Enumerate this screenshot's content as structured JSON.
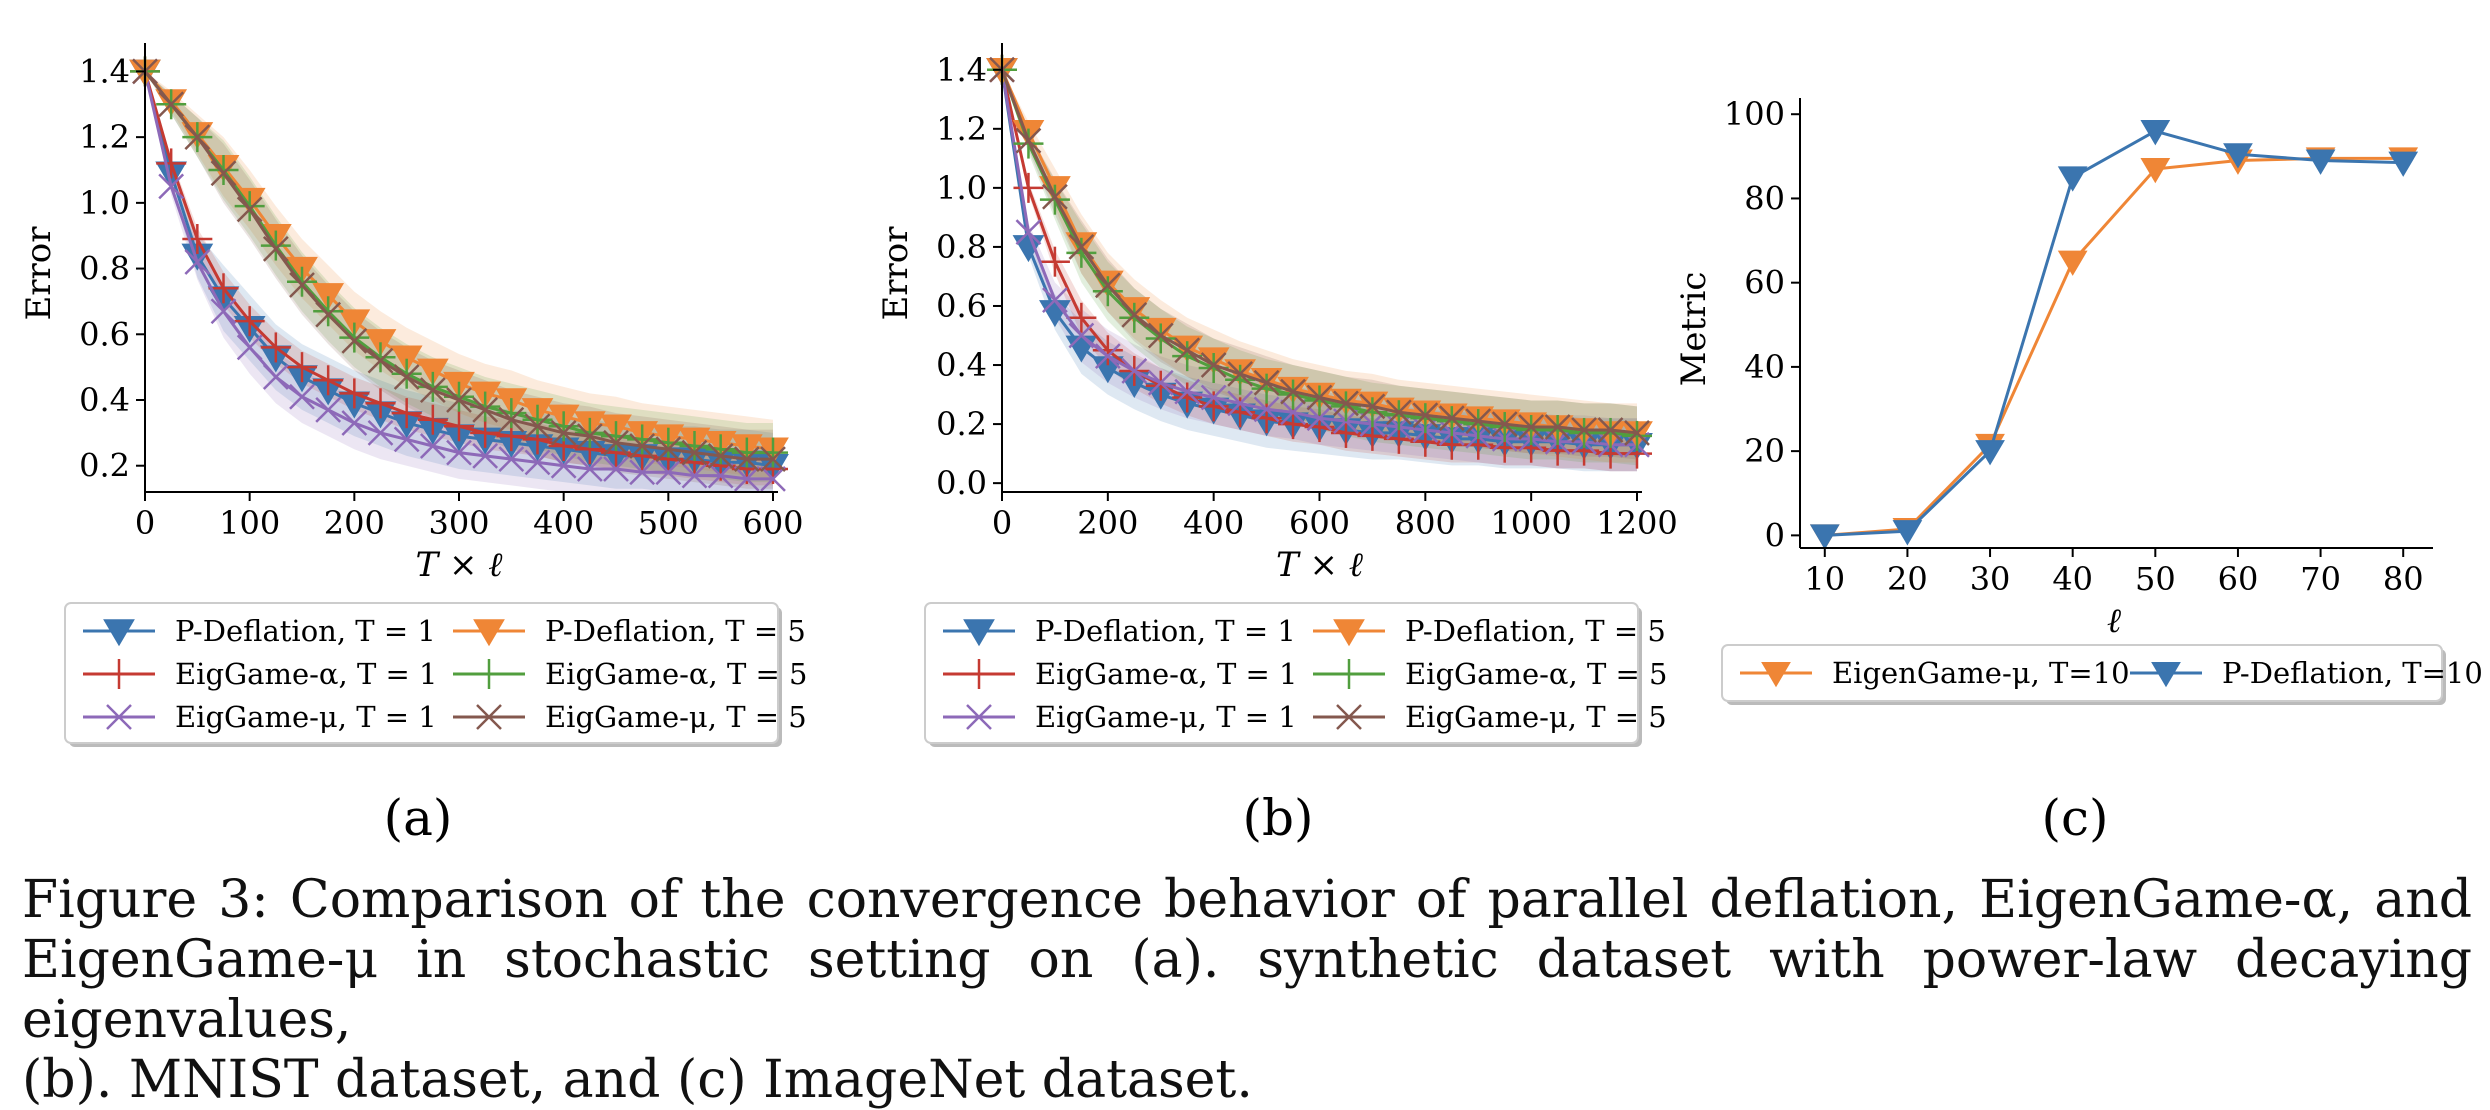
{
  "panel_labels": [
    "(a)",
    "(b)",
    "(c)"
  ],
  "caption": {
    "line1": "Figure 3:  Comparison of the convergence behavior of parallel deflation, EigenGame-α, and",
    "line2": "EigenGame-μ in stochastic setting on (a). synthetic dataset with power-law decaying eigenvalues,",
    "line3": "(b). MNIST dataset, and (c) ImageNet dataset."
  },
  "colors": {
    "blue": "#3b75af",
    "orange": "#ef8636",
    "red": "#c53a32",
    "green": "#519e3e",
    "purple": "#8d69b8",
    "brown": "#84584e"
  },
  "chart_data": [
    {
      "type": "line",
      "panel": "(a)",
      "xlabel": "T × ℓ",
      "ylabel": "Error",
      "xlim": [
        0,
        600
      ],
      "ylim": [
        0.12,
        1.45
      ],
      "xticks": [
        0,
        100,
        200,
        300,
        400,
        500,
        600
      ],
      "yticks": [
        0.2,
        0.4,
        0.6,
        0.8,
        1.0,
        1.2,
        1.4
      ],
      "ytick_labels": [
        "0.2",
        "0.4",
        "0.6",
        "0.8",
        "1.0",
        "1.2",
        "1.4"
      ],
      "legend_placement": "below",
      "legend_columns": 2,
      "series": [
        {
          "name": "P-Deflation, T = 1",
          "color": "blue",
          "marker": "triangle-down",
          "band": 0.1,
          "x": [
            0,
            25,
            50,
            75,
            100,
            125,
            150,
            175,
            200,
            225,
            250,
            275,
            300,
            325,
            350,
            375,
            400,
            425,
            450,
            475,
            500,
            525,
            550,
            575,
            600
          ],
          "values": [
            1.4,
            1.09,
            0.84,
            0.71,
            0.62,
            0.53,
            0.47,
            0.43,
            0.39,
            0.36,
            0.33,
            0.31,
            0.29,
            0.28,
            0.27,
            0.26,
            0.25,
            0.24,
            0.23,
            0.23,
            0.22,
            0.22,
            0.21,
            0.21,
            0.2
          ]
        },
        {
          "name": "EigGame-α, T = 1",
          "color": "red",
          "marker": "plus",
          "band": 0.05,
          "x": [
            0,
            25,
            50,
            75,
            100,
            125,
            150,
            175,
            200,
            225,
            250,
            275,
            300,
            325,
            350,
            375,
            400,
            425,
            450,
            475,
            500,
            525,
            550,
            575,
            600
          ],
          "values": [
            1.4,
            1.12,
            0.89,
            0.74,
            0.64,
            0.56,
            0.5,
            0.46,
            0.42,
            0.39,
            0.36,
            0.34,
            0.32,
            0.3,
            0.29,
            0.28,
            0.26,
            0.25,
            0.24,
            0.23,
            0.22,
            0.21,
            0.2,
            0.19,
            0.19
          ]
        },
        {
          "name": "EigGame-μ, T = 1",
          "color": "purple",
          "marker": "x",
          "band": 0.08,
          "x": [
            0,
            25,
            50,
            75,
            100,
            125,
            150,
            175,
            200,
            225,
            250,
            275,
            300,
            325,
            350,
            375,
            400,
            425,
            450,
            475,
            500,
            525,
            550,
            575,
            600
          ],
          "values": [
            1.4,
            1.05,
            0.82,
            0.67,
            0.56,
            0.47,
            0.41,
            0.37,
            0.33,
            0.3,
            0.28,
            0.26,
            0.24,
            0.23,
            0.22,
            0.21,
            0.2,
            0.19,
            0.19,
            0.18,
            0.18,
            0.17,
            0.17,
            0.16,
            0.16
          ]
        },
        {
          "name": "P-Deflation, T = 5",
          "color": "orange",
          "marker": "triangle-down",
          "band": 0.09,
          "x": [
            0,
            25,
            50,
            75,
            100,
            125,
            150,
            175,
            200,
            225,
            250,
            275,
            300,
            325,
            350,
            375,
            400,
            425,
            450,
            475,
            500,
            525,
            550,
            575,
            600
          ],
          "values": [
            1.4,
            1.31,
            1.21,
            1.11,
            1.01,
            0.9,
            0.8,
            0.72,
            0.64,
            0.58,
            0.53,
            0.49,
            0.45,
            0.42,
            0.4,
            0.37,
            0.35,
            0.33,
            0.32,
            0.3,
            0.29,
            0.28,
            0.27,
            0.26,
            0.25
          ]
        },
        {
          "name": "EigGame-α, T = 5",
          "color": "green",
          "marker": "plus",
          "band": 0.09,
          "x": [
            0,
            25,
            50,
            75,
            100,
            125,
            150,
            175,
            200,
            225,
            250,
            275,
            300,
            325,
            350,
            375,
            400,
            425,
            450,
            475,
            500,
            525,
            550,
            575,
            600
          ],
          "values": [
            1.4,
            1.3,
            1.2,
            1.1,
            0.99,
            0.87,
            0.76,
            0.67,
            0.59,
            0.53,
            0.48,
            0.44,
            0.41,
            0.38,
            0.36,
            0.34,
            0.32,
            0.3,
            0.29,
            0.28,
            0.27,
            0.26,
            0.25,
            0.24,
            0.24
          ]
        },
        {
          "name": "EigGame-μ, T = 5",
          "color": "brown",
          "marker": "x",
          "band": 0.09,
          "x": [
            0,
            25,
            50,
            75,
            100,
            125,
            150,
            175,
            200,
            225,
            250,
            275,
            300,
            325,
            350,
            375,
            400,
            425,
            450,
            475,
            500,
            525,
            550,
            575,
            600
          ],
          "values": [
            1.4,
            1.3,
            1.2,
            1.09,
            0.98,
            0.86,
            0.75,
            0.66,
            0.58,
            0.52,
            0.47,
            0.43,
            0.4,
            0.37,
            0.34,
            0.32,
            0.3,
            0.29,
            0.27,
            0.26,
            0.25,
            0.24,
            0.23,
            0.22,
            0.22
          ]
        }
      ]
    },
    {
      "type": "line",
      "panel": "(b)",
      "xlabel": "T × ℓ",
      "ylabel": "Error",
      "xlim": [
        0,
        1200
      ],
      "ylim": [
        -0.03,
        1.45
      ],
      "xticks": [
        0,
        200,
        400,
        600,
        800,
        1000,
        1200
      ],
      "yticks": [
        0.0,
        0.2,
        0.4,
        0.6,
        0.8,
        1.0,
        1.2,
        1.4
      ],
      "ytick_labels": [
        "0.0",
        "0.2",
        "0.4",
        "0.6",
        "0.8",
        "1.0",
        "1.2",
        "1.4"
      ],
      "legend_placement": "below",
      "legend_columns": 2,
      "series": [
        {
          "name": "P-Deflation, T = 1",
          "color": "blue",
          "marker": "triangle-down",
          "band": 0.09,
          "x": [
            0,
            50,
            100,
            150,
            200,
            250,
            300,
            350,
            400,
            450,
            500,
            550,
            600,
            650,
            700,
            750,
            800,
            850,
            900,
            950,
            1000,
            1050,
            1100,
            1150,
            1200
          ],
          "values": [
            1.4,
            0.8,
            0.58,
            0.46,
            0.39,
            0.34,
            0.3,
            0.27,
            0.25,
            0.23,
            0.21,
            0.2,
            0.19,
            0.18,
            0.17,
            0.17,
            0.16,
            0.15,
            0.15,
            0.14,
            0.14,
            0.14,
            0.13,
            0.13,
            0.13
          ]
        },
        {
          "name": "EigGame-α, T = 1",
          "color": "red",
          "marker": "plus",
          "band": 0.06,
          "x": [
            0,
            50,
            100,
            150,
            200,
            250,
            300,
            350,
            400,
            450,
            500,
            550,
            600,
            650,
            700,
            750,
            800,
            850,
            900,
            950,
            1000,
            1050,
            1100,
            1150,
            1200
          ],
          "values": [
            1.4,
            1.0,
            0.75,
            0.56,
            0.45,
            0.38,
            0.33,
            0.29,
            0.26,
            0.24,
            0.22,
            0.2,
            0.19,
            0.17,
            0.16,
            0.15,
            0.14,
            0.13,
            0.13,
            0.12,
            0.12,
            0.11,
            0.11,
            0.1,
            0.1
          ]
        },
        {
          "name": "EigGame-μ, T = 1",
          "color": "purple",
          "marker": "x",
          "band": 0.09,
          "x": [
            0,
            50,
            100,
            150,
            200,
            250,
            300,
            350,
            400,
            450,
            500,
            550,
            600,
            650,
            700,
            750,
            800,
            850,
            900,
            950,
            1000,
            1050,
            1100,
            1150,
            1200
          ],
          "values": [
            1.4,
            0.85,
            0.62,
            0.5,
            0.43,
            0.38,
            0.34,
            0.31,
            0.29,
            0.27,
            0.25,
            0.24,
            0.22,
            0.21,
            0.2,
            0.19,
            0.18,
            0.17,
            0.16,
            0.15,
            0.15,
            0.14,
            0.14,
            0.13,
            0.13
          ]
        },
        {
          "name": "P-Deflation, T = 5",
          "color": "orange",
          "marker": "triangle-down",
          "band": 0.1,
          "x": [
            0,
            50,
            100,
            150,
            200,
            250,
            300,
            350,
            400,
            450,
            500,
            550,
            600,
            650,
            700,
            750,
            800,
            850,
            900,
            950,
            1000,
            1050,
            1100,
            1150,
            1200
          ],
          "values": [
            1.4,
            1.19,
            1.0,
            0.81,
            0.68,
            0.59,
            0.52,
            0.46,
            0.42,
            0.38,
            0.35,
            0.32,
            0.3,
            0.28,
            0.27,
            0.25,
            0.24,
            0.23,
            0.22,
            0.21,
            0.2,
            0.19,
            0.18,
            0.17,
            0.17
          ]
        },
        {
          "name": "EigGame-α, T = 5",
          "color": "green",
          "marker": "plus",
          "band": 0.1,
          "x": [
            0,
            50,
            100,
            150,
            200,
            250,
            300,
            350,
            400,
            450,
            500,
            550,
            600,
            650,
            700,
            750,
            800,
            850,
            900,
            950,
            1000,
            1050,
            1100,
            1150,
            1200
          ],
          "values": [
            1.4,
            1.15,
            0.96,
            0.78,
            0.65,
            0.56,
            0.49,
            0.43,
            0.39,
            0.35,
            0.32,
            0.3,
            0.28,
            0.26,
            0.24,
            0.23,
            0.22,
            0.21,
            0.2,
            0.19,
            0.18,
            0.18,
            0.17,
            0.17,
            0.16
          ]
        },
        {
          "name": "EigGame-μ, T = 5",
          "color": "brown",
          "marker": "x",
          "band": 0.09,
          "x": [
            0,
            50,
            100,
            150,
            200,
            250,
            300,
            350,
            400,
            450,
            500,
            550,
            600,
            650,
            700,
            750,
            800,
            850,
            900,
            950,
            1000,
            1050,
            1100,
            1150,
            1200
          ],
          "values": [
            1.4,
            1.16,
            0.97,
            0.8,
            0.67,
            0.57,
            0.5,
            0.45,
            0.4,
            0.37,
            0.34,
            0.31,
            0.29,
            0.27,
            0.26,
            0.24,
            0.23,
            0.22,
            0.21,
            0.2,
            0.19,
            0.19,
            0.18,
            0.18,
            0.17
          ]
        }
      ]
    },
    {
      "type": "line",
      "panel": "(c)",
      "xlabel": "ℓ",
      "ylabel": "Metric",
      "xlim": [
        7,
        83
      ],
      "ylim": [
        -3,
        101
      ],
      "xticks": [
        10,
        20,
        30,
        40,
        50,
        60,
        70,
        80
      ],
      "yticks": [
        0,
        20,
        40,
        60,
        80,
        100
      ],
      "ytick_labels": [
        "0",
        "20",
        "40",
        "60",
        "80",
        "100"
      ],
      "legend_placement": "below",
      "legend_columns": 2,
      "series": [
        {
          "name": "EigenGame-μ, T=10",
          "color": "orange",
          "marker": "triangle-down",
          "band": 0,
          "x": [
            10,
            20,
            30,
            40,
            50,
            60,
            70,
            80
          ],
          "values": [
            0,
            1.5,
            21.5,
            65,
            87,
            89,
            89.5,
            89.5
          ]
        },
        {
          "name": "P-Deflation, T=10",
          "color": "blue",
          "marker": "triangle-down",
          "band": 0,
          "x": [
            10,
            20,
            30,
            40,
            50,
            60,
            70,
            80
          ],
          "values": [
            0,
            1,
            20,
            85,
            96,
            90.5,
            89,
            88.5
          ]
        }
      ]
    }
  ]
}
